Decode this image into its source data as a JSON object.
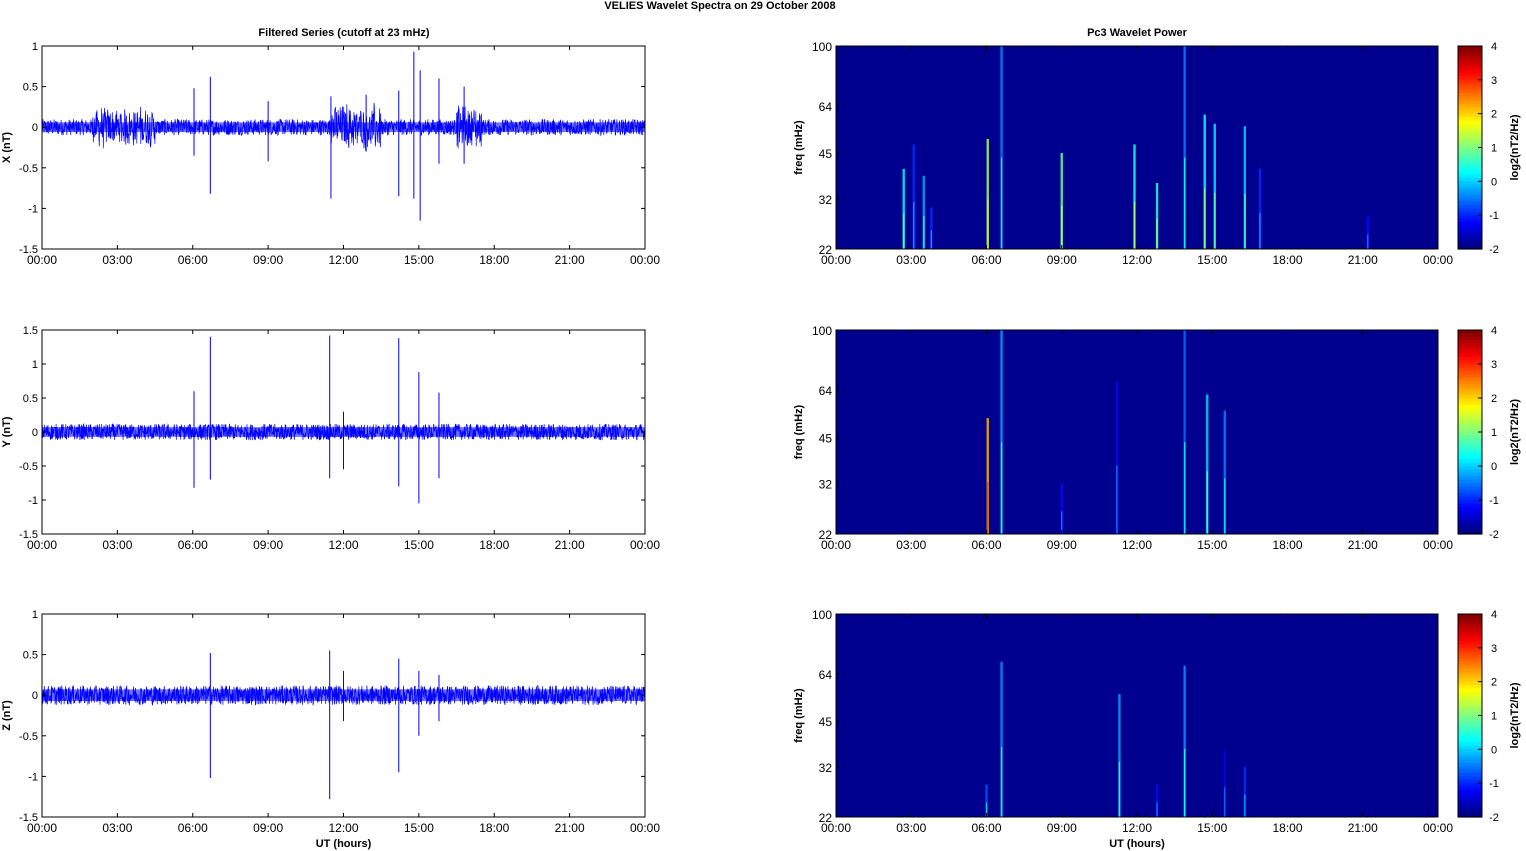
{
  "figure": {
    "title": "VELIES Wavelet Spectra on 29 October   2008",
    "left_column_title": "Filtered Series (cutoff at 23 mHz)",
    "right_column_title": "Pc3 Wavelet Power"
  },
  "colors": {
    "trace": "#0000ff",
    "background": "#ffffff",
    "heatmap_base": "#00008f",
    "axis": "#000000",
    "grid": "#b0b0b0"
  },
  "chart_data": [
    {
      "type": "line",
      "panel": "X",
      "title": "Filtered Series (cutoff at 23 mHz)",
      "ylabel": "X (nT)",
      "xlabel": "",
      "ylim": [
        -1.5,
        1
      ],
      "yticks": [
        -1.5,
        -1,
        -0.5,
        0,
        0.5,
        1
      ],
      "ytick_labels": [
        "-1.5",
        "-1",
        "-0.5",
        "0",
        "0.5",
        "1"
      ],
      "xlim": [
        0,
        24
      ],
      "xticks": [
        "00:00",
        "03:00",
        "06:00",
        "09:00",
        "12:00",
        "15:00",
        "18:00",
        "21:00",
        "00:00"
      ],
      "noise_amplitude": 0.1,
      "spikes": [
        {
          "t": 6.05,
          "hi": 0.48,
          "lo": -0.35
        },
        {
          "t": 6.7,
          "hi": 0.62,
          "lo": -0.82
        },
        {
          "t": 9.0,
          "hi": 0.32,
          "lo": -0.42
        },
        {
          "t": 11.5,
          "hi": 0.38,
          "lo": -0.88
        },
        {
          "t": 12.9,
          "hi": 0.4,
          "lo": -0.3
        },
        {
          "t": 14.2,
          "hi": 0.45,
          "lo": -0.85
        },
        {
          "t": 14.8,
          "hi": 0.93,
          "lo": -0.88
        },
        {
          "t": 15.05,
          "hi": 0.7,
          "lo": -1.15
        },
        {
          "t": 15.8,
          "hi": 0.6,
          "lo": -0.45
        },
        {
          "t": 16.8,
          "hi": 0.5,
          "lo": -0.45
        }
      ],
      "bursts": [
        {
          "t0": 2.0,
          "t1": 4.5,
          "amp": 0.28
        },
        {
          "t0": 11.5,
          "t1": 13.5,
          "amp": 0.32
        },
        {
          "t0": 16.5,
          "t1": 17.5,
          "amp": 0.3
        }
      ]
    },
    {
      "type": "line",
      "panel": "Y",
      "ylabel": "Y (nT)",
      "xlabel": "",
      "ylim": [
        -1.5,
        1.5
      ],
      "yticks": [
        -1.5,
        -1,
        -0.5,
        0,
        0.5,
        1,
        1.5
      ],
      "ytick_labels": [
        "-1.5",
        "-1",
        "-0.5",
        "0",
        "0.5",
        "1",
        "1.5"
      ],
      "xlim": [
        0,
        24
      ],
      "xticks": [
        "00:00",
        "03:00",
        "06:00",
        "09:00",
        "12:00",
        "15:00",
        "18:00",
        "21:00",
        "00:00"
      ],
      "noise_amplitude": 0.12,
      "spikes": [
        {
          "t": 6.05,
          "hi": 0.6,
          "lo": -0.82
        },
        {
          "t": 6.7,
          "hi": 1.4,
          "lo": -0.7
        },
        {
          "t": 11.45,
          "hi": 1.42,
          "lo": -0.68
        },
        {
          "t": 12.0,
          "hi": 0.3,
          "lo": -0.55
        },
        {
          "t": 14.2,
          "hi": 1.38,
          "lo": -0.8
        },
        {
          "t": 15.0,
          "hi": 0.88,
          "lo": -1.05
        },
        {
          "t": 15.8,
          "hi": 0.58,
          "lo": -0.68
        }
      ],
      "bursts": []
    },
    {
      "type": "line",
      "panel": "Z",
      "ylabel": "Z (nT)",
      "xlabel": "UT (hours)",
      "ylim": [
        -1.5,
        1
      ],
      "yticks": [
        -1.5,
        -1,
        -0.5,
        0,
        0.5,
        1
      ],
      "ytick_labels": [
        "-1.5",
        "-1",
        "-0.5",
        "0",
        "0.5",
        "1"
      ],
      "xlim": [
        0,
        24
      ],
      "xticks": [
        "00:00",
        "03:00",
        "06:00",
        "09:00",
        "12:00",
        "15:00",
        "18:00",
        "21:00",
        "00:00"
      ],
      "noise_amplitude": 0.12,
      "spikes": [
        {
          "t": 6.7,
          "hi": 0.52,
          "lo": -1.02
        },
        {
          "t": 11.45,
          "hi": 0.55,
          "lo": -1.28
        },
        {
          "t": 12.0,
          "hi": 0.3,
          "lo": -0.32
        },
        {
          "t": 14.2,
          "hi": 0.45,
          "lo": -0.95
        },
        {
          "t": 15.0,
          "hi": 0.3,
          "lo": -0.5
        },
        {
          "t": 15.8,
          "hi": 0.25,
          "lo": -0.32
        }
      ],
      "bursts": []
    },
    {
      "type": "heatmap",
      "panel": "X",
      "title": "Pc3 Wavelet Power",
      "ylabel": "freq (mHz)",
      "xlabel": "",
      "yticks": [
        22,
        32,
        45,
        64,
        100
      ],
      "ytick_labels": [
        "22",
        "32",
        "45",
        "64",
        "100"
      ],
      "ylim": [
        22,
        100
      ],
      "yscale": "log",
      "xlim": [
        0,
        24
      ],
      "xticks": [
        "00:00",
        "03:00",
        "06:00",
        "09:00",
        "12:00",
        "15:00",
        "18:00",
        "21:00",
        "00:00"
      ],
      "colorbar": {
        "label": "log2(nT2/Hz)",
        "range": [
          -2,
          4
        ],
        "ticks": [
          "4",
          "3",
          "2",
          "1",
          "0",
          "-1",
          "-2"
        ]
      },
      "events": [
        {
          "t": 2.7,
          "fmax": 40,
          "level": 0.2
        },
        {
          "t": 3.1,
          "fmax": 48,
          "level": -1.0
        },
        {
          "t": 3.5,
          "fmax": 38,
          "level": -0.3
        },
        {
          "t": 3.8,
          "fmax": 30,
          "level": -1.0
        },
        {
          "t": 6.05,
          "fmax": 50,
          "level": 1.2
        },
        {
          "t": 6.6,
          "fmax": 100,
          "level": -0.5
        },
        {
          "t": 9.0,
          "fmax": 45,
          "level": 0.8
        },
        {
          "t": 11.9,
          "fmax": 48,
          "level": 0.4
        },
        {
          "t": 12.8,
          "fmax": 36,
          "level": 0.5
        },
        {
          "t": 13.9,
          "fmax": 100,
          "level": -0.5
        },
        {
          "t": 14.7,
          "fmax": 60,
          "level": 0.3
        },
        {
          "t": 15.1,
          "fmax": 56,
          "level": 0.1
        },
        {
          "t": 16.3,
          "fmax": 55,
          "level": 0.0
        },
        {
          "t": 16.9,
          "fmax": 40,
          "level": -1.0
        },
        {
          "t": 21.2,
          "fmax": 28,
          "level": -1.2
        }
      ]
    },
    {
      "type": "heatmap",
      "panel": "Y",
      "ylabel": "freq (mHz)",
      "xlabel": "",
      "yticks": [
        22,
        32,
        45,
        64,
        100
      ],
      "ytick_labels": [
        "22",
        "32",
        "45",
        "64",
        "100"
      ],
      "ylim": [
        22,
        100
      ],
      "yscale": "log",
      "xlim": [
        0,
        24
      ],
      "xticks": [
        "00:00",
        "03:00",
        "06:00",
        "09:00",
        "12:00",
        "15:00",
        "18:00",
        "21:00",
        "00:00"
      ],
      "colorbar": {
        "label": "log2(nT2/Hz)",
        "range": [
          -2,
          4
        ],
        "ticks": [
          "4",
          "3",
          "2",
          "1",
          "0",
          "-1",
          "-2"
        ]
      },
      "events": [
        {
          "t": 6.05,
          "fmax": 52,
          "level": 2.2
        },
        {
          "t": 6.6,
          "fmax": 100,
          "level": -0.3
        },
        {
          "t": 9.0,
          "fmax": 32,
          "level": -1.2
        },
        {
          "t": 11.2,
          "fmax": 68,
          "level": -1.2
        },
        {
          "t": 13.9,
          "fmax": 100,
          "level": -0.6
        },
        {
          "t": 14.8,
          "fmax": 62,
          "level": 0.0
        },
        {
          "t": 15.5,
          "fmax": 55,
          "level": -0.5
        }
      ]
    },
    {
      "type": "heatmap",
      "panel": "Z",
      "ylabel": "freq (mHz)",
      "xlabel": "UT (hours)",
      "yticks": [
        22,
        32,
        45,
        64,
        100
      ],
      "ytick_labels": [
        "22",
        "32",
        "45",
        "64",
        "100"
      ],
      "ylim": [
        22,
        100
      ],
      "yscale": "log",
      "xlim": [
        0,
        24
      ],
      "xticks": [
        "00:00",
        "03:00",
        "06:00",
        "09:00",
        "12:00",
        "15:00",
        "18:00",
        "21:00",
        "00:00"
      ],
      "colorbar": {
        "label": "log2(nT2/Hz)",
        "range": [
          -2,
          4
        ],
        "ticks": [
          "4",
          "3",
          "2",
          "1",
          "0",
          "-1",
          "-2"
        ]
      },
      "events": [
        {
          "t": 6.0,
          "fmax": 28,
          "level": -0.8
        },
        {
          "t": 6.6,
          "fmax": 70,
          "level": -0.4
        },
        {
          "t": 11.3,
          "fmax": 55,
          "level": -0.3
        },
        {
          "t": 12.8,
          "fmax": 28,
          "level": -1.2
        },
        {
          "t": 13.9,
          "fmax": 68,
          "level": -0.4
        },
        {
          "t": 15.5,
          "fmax": 36,
          "level": -1.3
        },
        {
          "t": 16.3,
          "fmax": 32,
          "level": -1.0
        }
      ]
    }
  ]
}
